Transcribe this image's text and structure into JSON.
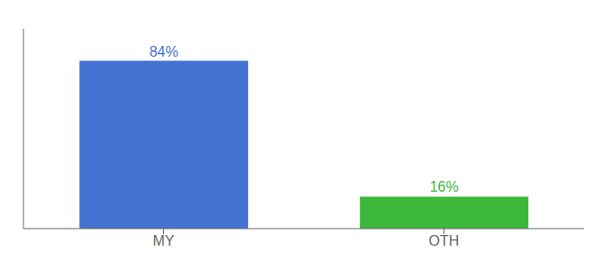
{
  "chart_data": {
    "type": "bar",
    "categories": [
      "MY",
      "OTH"
    ],
    "values": [
      84,
      16
    ],
    "value_labels": [
      "84%",
      "16%"
    ],
    "colors": [
      "#4472D3",
      "#3CB83C"
    ],
    "ylim": [
      0,
      100
    ],
    "data_labels": true,
    "tick_labels": "x",
    "grid": false
  }
}
